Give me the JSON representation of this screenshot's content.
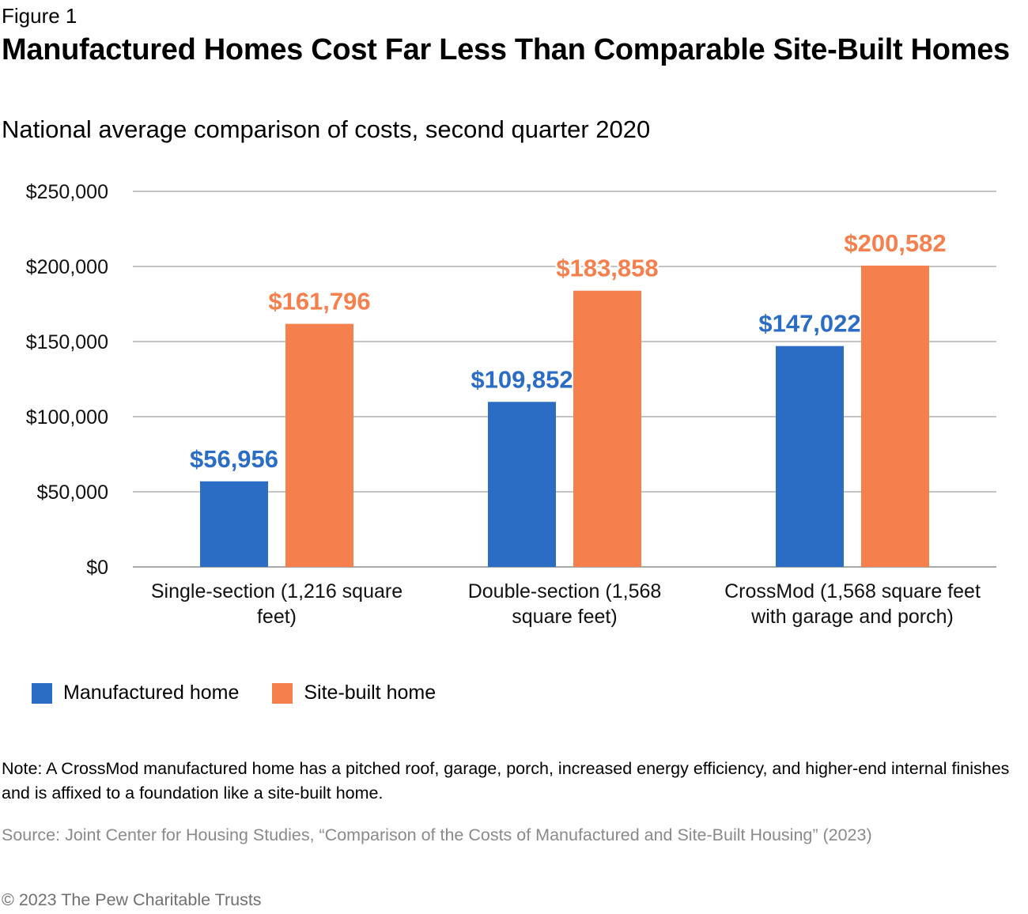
{
  "figure_label": "Figure 1",
  "title": "Manufactured Homes Cost Far Less Than Comparable Site-Built Homes",
  "subtitle": "National average comparison of costs, second quarter 2020",
  "note": "Note: A CrossMod manufactured home has a pitched roof, garage, porch, increased energy efficiency, and higher-end internal finishes and is affixed to a foundation like a site-built home.",
  "source": "Source: Joint Center for Housing Studies, “Comparison of the Costs of Manufactured and Site-Built Housing” (2023)",
  "copyright": "© 2023 The Pew Charitable Trusts",
  "chart_data": {
    "type": "bar",
    "title": "Manufactured Homes Cost Far Less Than Comparable Site-Built Homes",
    "subtitle": "National average comparison of costs, second quarter 2020",
    "categories": [
      [
        "Single-section (1,216 square",
        "feet)"
      ],
      [
        "Double-section (1,568",
        "square feet)"
      ],
      [
        "CrossMod (1,568 square feet",
        "with garage and porch)"
      ]
    ],
    "series": [
      {
        "name": "Manufactured home",
        "color": "#2b6cc4",
        "values": [
          56956,
          109852,
          147022
        ],
        "labels": [
          "$56,956",
          "$109,852",
          "$147,022"
        ]
      },
      {
        "name": "Site-built home",
        "color": "#f5804d",
        "values": [
          161796,
          183858,
          200582
        ],
        "labels": [
          "$161,796",
          "$183,858",
          "$200,582"
        ]
      }
    ],
    "ylim": [
      0,
      250000
    ],
    "yticks": [
      0,
      50000,
      100000,
      150000,
      200000,
      250000
    ],
    "ytick_labels": [
      "$0",
      "$50,000",
      "$100,000",
      "$150,000",
      "$200,000",
      "$250,000"
    ],
    "grid": true,
    "legend_position": "bottom-left"
  }
}
